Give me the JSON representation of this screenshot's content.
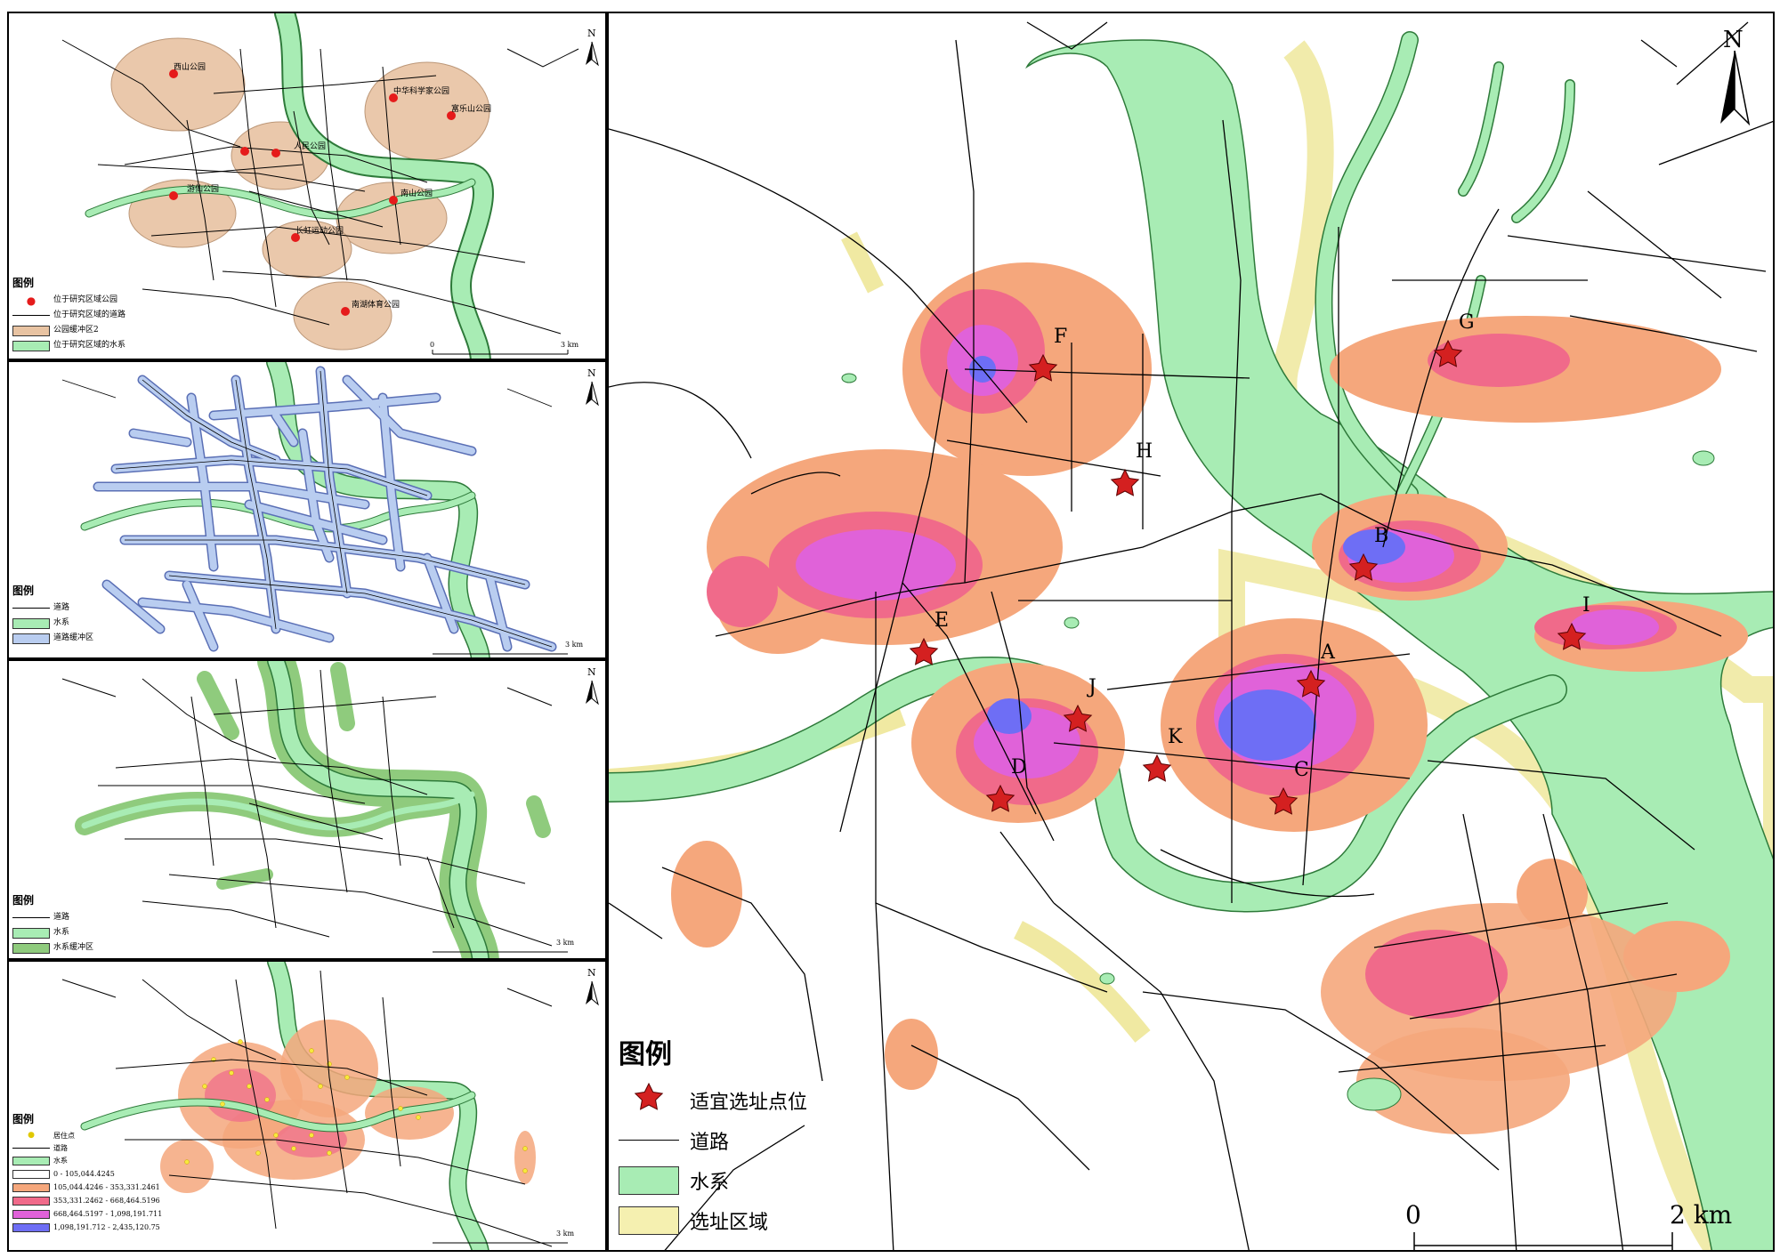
{
  "north_label": "N",
  "panels": {
    "parks": {
      "legend_title": "图例",
      "legend": [
        "位于研究区域公园",
        "位于研究区域的道路",
        "公园缓冲区2",
        "位于研究区域的水系"
      ],
      "parks": [
        "西山公园",
        "中华科学家公园",
        "富乐山公园",
        "人民公园",
        "南山公园",
        "长虹运动公园",
        "南湖体育公园",
        "游仙公园"
      ],
      "scale": {
        "start": "0",
        "end": "3 km"
      }
    },
    "roads": {
      "legend_title": "图例",
      "legend": [
        "道路",
        "水系",
        "道路缓冲区"
      ],
      "scale": {
        "end": "3 km"
      }
    },
    "water": {
      "legend_title": "图例",
      "legend": [
        "道路",
        "水系",
        "水系缓冲区"
      ],
      "scale": {
        "end": "3 km"
      }
    },
    "population": {
      "legend_title": "图例",
      "legend": [
        "居住点",
        "道路",
        "水系",
        "0 - 105,044.4245",
        "105,044.4246 - 353,331.2461",
        "353,331.2462 - 668,464.5196",
        "668,464.5197 - 1,098,191.711",
        "1,098,191.712 - 2,435,120.75"
      ],
      "scale": {
        "end": "3 km"
      }
    }
  },
  "main_map": {
    "legend_title": "图例",
    "legend": [
      "适宜选址点位",
      "道路",
      "水系",
      "选址区域"
    ],
    "scale": {
      "start": "0",
      "end": "2 km"
    },
    "sites": [
      "A",
      "B",
      "C",
      "D",
      "E",
      "F",
      "G",
      "H",
      "I",
      "J",
      "K"
    ]
  },
  "colors": {
    "water": "#a8ecb4",
    "water_edge": "#2e7a3a",
    "site_area": "#f5f0b0",
    "park_buffer": "#e8c3a2",
    "road_buffer": "#b9cdf0",
    "water_buffer": "#8fcb7d",
    "class1": "#ffffff",
    "class2": "#f5a77c",
    "class3": "#f06a8a",
    "class4": "#e062d9",
    "class5": "#6e6ef5",
    "star": "#d42020",
    "park_dot": "#e51b1b",
    "resident_dot": "#f7e93d"
  }
}
